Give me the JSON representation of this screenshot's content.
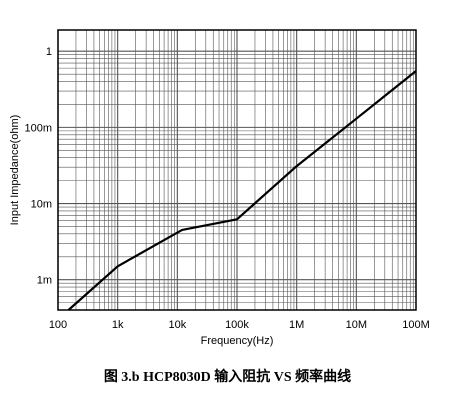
{
  "chart_data": {
    "type": "line",
    "xscale": "log",
    "yscale": "log",
    "xlim": [
      100,
      100000000
    ],
    "ylim": [
      0.0004,
      1.9
    ],
    "xlabel": "Frequency(Hz)",
    "ylabel": "Input Impedance(ohm)",
    "xticks": [
      {
        "value": 100,
        "label": "100"
      },
      {
        "value": 1000,
        "label": "1k"
      },
      {
        "value": 10000,
        "label": "10k"
      },
      {
        "value": 100000,
        "label": "100k"
      },
      {
        "value": 1000000,
        "label": "1M"
      },
      {
        "value": 10000000,
        "label": "10M"
      },
      {
        "value": 100000000,
        "label": "100M"
      }
    ],
    "yticks": [
      {
        "value": 0.001,
        "label": "1m"
      },
      {
        "value": 0.01,
        "label": "10m"
      },
      {
        "value": 0.1,
        "label": "100m"
      },
      {
        "value": 1,
        "label": "1"
      }
    ],
    "grid": true,
    "series": [
      {
        "x": [
          150,
          1000,
          12000,
          100000,
          1000000,
          10000000,
          100000000
        ],
        "y": [
          0.0004,
          0.0015,
          0.0045,
          0.0062,
          0.031,
          0.13,
          0.55
        ]
      }
    ],
    "caption": "图 3.b HCP8030D 输入阻抗 VS 频率曲线"
  }
}
